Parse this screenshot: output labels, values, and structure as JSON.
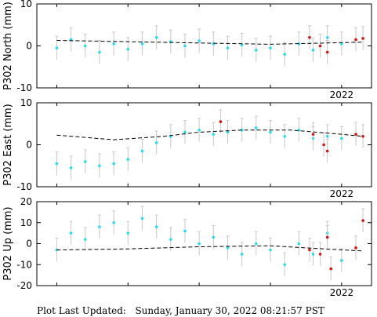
{
  "footer": {
    "prefix": "Plot Last Updated:",
    "timestamp": "Sunday, January 30, 2022 08:21:57 PST"
  },
  "colors": {
    "data_points": "#1fe0f0",
    "recent_points": "#e01010",
    "error_bars": "#c8c8c8",
    "model_line": "#000000"
  },
  "chart_data": [
    {
      "type": "scatter",
      "ylabel": "P302 North (mm)",
      "ylim": [
        -10,
        10
      ],
      "yticks": [
        -10,
        0,
        10
      ],
      "x_tick_label": "2022",
      "grid": false,
      "model_line": [
        [
          2018.0,
          1.3
        ],
        [
          2019.0,
          1.0
        ],
        [
          2020.0,
          0.7
        ],
        [
          2021.0,
          0.4
        ],
        [
          2022.3,
          0.9
        ]
      ],
      "series": [
        {
          "values": [
            [
              2018.0,
              -0.5
            ],
            [
              2018.2,
              1.5
            ],
            [
              2018.4,
              0.0
            ],
            [
              2018.6,
              -1.5
            ],
            [
              2018.8,
              0.5
            ],
            [
              2019.0,
              -0.8
            ],
            [
              2019.2,
              0.5
            ],
            [
              2019.4,
              2.0
            ],
            [
              2019.6,
              1.0
            ],
            [
              2019.8,
              0.0
            ],
            [
              2020.0,
              1.2
            ],
            [
              2020.2,
              0.5
            ],
            [
              2020.4,
              -0.5
            ],
            [
              2020.6,
              0.2
            ],
            [
              2020.8,
              -1.0
            ],
            [
              2021.0,
              -0.5
            ],
            [
              2021.2,
              -2.0
            ],
            [
              2021.4,
              0.5
            ],
            [
              2021.6,
              -1.0
            ],
            [
              2021.8,
              2.0
            ],
            [
              2022.0,
              0.5
            ]
          ]
        },
        {
          "values": [
            [
              2021.55,
              2.0
            ],
            [
              2021.7,
              0.0
            ],
            [
              2021.8,
              -1.5
            ],
            [
              2022.2,
              1.5
            ],
            [
              2022.3,
              1.8
            ]
          ]
        }
      ]
    },
    {
      "type": "scatter",
      "ylabel": "P302 East (mm)",
      "ylim": [
        -10,
        10
      ],
      "yticks": [
        -10,
        0,
        10
      ],
      "x_tick_label": "2022",
      "grid": false,
      "model_line": [
        [
          2018.0,
          2.3
        ],
        [
          2018.8,
          1.2
        ],
        [
          2019.5,
          2.0
        ],
        [
          2020.0,
          3.0
        ],
        [
          2020.6,
          3.5
        ],
        [
          2021.3,
          3.5
        ],
        [
          2022.0,
          2.5
        ],
        [
          2022.3,
          2.0
        ]
      ],
      "series": [
        {
          "values": [
            [
              2018.0,
              -4.5
            ],
            [
              2018.2,
              -5.5
            ],
            [
              2018.4,
              -4.0
            ],
            [
              2018.6,
              -5.0
            ],
            [
              2018.8,
              -4.5
            ],
            [
              2019.0,
              -3.5
            ],
            [
              2019.2,
              -1.5
            ],
            [
              2019.4,
              0.5
            ],
            [
              2019.6,
              2.0
            ],
            [
              2019.8,
              3.0
            ],
            [
              2020.0,
              3.5
            ],
            [
              2020.2,
              2.5
            ],
            [
              2020.4,
              3.0
            ],
            [
              2020.6,
              3.5
            ],
            [
              2020.8,
              4.0
            ],
            [
              2021.0,
              3.0
            ],
            [
              2021.2,
              2.0
            ],
            [
              2021.4,
              3.5
            ],
            [
              2021.6,
              1.5
            ],
            [
              2021.8,
              2.0
            ],
            [
              2022.0,
              1.5
            ]
          ]
        },
        {
          "values": [
            [
              2020.3,
              5.5
            ],
            [
              2021.6,
              2.5
            ],
            [
              2021.75,
              0.0
            ],
            [
              2021.8,
              -1.5
            ],
            [
              2022.2,
              2.5
            ],
            [
              2022.3,
              2.0
            ]
          ]
        }
      ]
    },
    {
      "type": "scatter",
      "ylabel": "P302 Up (mm)",
      "ylim": [
        -20,
        20
      ],
      "yticks": [
        -20,
        -10,
        0,
        10,
        20
      ],
      "x_tick_label": "2022",
      "grid": false,
      "model_line": [
        [
          2018.0,
          -3.0
        ],
        [
          2019.0,
          -2.5
        ],
        [
          2020.0,
          -1.5
        ],
        [
          2021.0,
          -1.0
        ],
        [
          2021.5,
          -2.0
        ],
        [
          2022.3,
          -3.5
        ]
      ],
      "series": [
        {
          "values": [
            [
              2018.0,
              -3.0
            ],
            [
              2018.2,
              5.0
            ],
            [
              2018.4,
              2.0
            ],
            [
              2018.6,
              8.0
            ],
            [
              2018.8,
              10.0
            ],
            [
              2019.0,
              5.0
            ],
            [
              2019.2,
              12.0
            ],
            [
              2019.4,
              8.0
            ],
            [
              2019.6,
              2.0
            ],
            [
              2019.8,
              6.0
            ],
            [
              2020.0,
              0.0
            ],
            [
              2020.2,
              3.0
            ],
            [
              2020.4,
              -2.0
            ],
            [
              2020.6,
              -5.0
            ],
            [
              2020.8,
              0.0
            ],
            [
              2021.0,
              -3.0
            ],
            [
              2021.2,
              -10.0
            ],
            [
              2021.4,
              0.0
            ],
            [
              2021.6,
              -5.0
            ],
            [
              2021.8,
              5.0
            ],
            [
              2022.0,
              -8.0
            ]
          ]
        },
        {
          "values": [
            [
              2021.55,
              -3.0
            ],
            [
              2021.7,
              -5.0
            ],
            [
              2021.8,
              3.0
            ],
            [
              2021.85,
              -12.0
            ],
            [
              2022.2,
              -2.0
            ],
            [
              2022.3,
              11.0
            ]
          ]
        }
      ]
    }
  ]
}
